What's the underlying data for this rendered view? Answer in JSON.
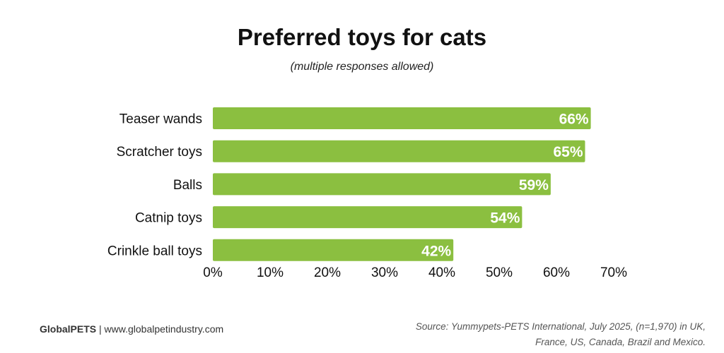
{
  "chart_data": {
    "type": "bar",
    "orientation": "horizontal",
    "title": "Preferred toys for cats",
    "subtitle": "(multiple responses allowed)",
    "categories": [
      "Teaser wands",
      "Scratcher toys",
      "Balls",
      "Catnip toys",
      "Crinkle ball toys"
    ],
    "values": [
      66,
      65,
      59,
      54,
      42
    ],
    "data_labels": [
      "66%",
      "65%",
      "59%",
      "54%",
      "42%"
    ],
    "xlim": [
      0,
      70
    ],
    "x_ticks": [
      "0%",
      "10%",
      "20%",
      "30%",
      "40%",
      "50%",
      "60%",
      "70%"
    ],
    "grid": false,
    "bar_color": "#8bbf40"
  },
  "footer": {
    "brand": "GlobalPETS",
    "separator": " | ",
    "website": "www.globalpetindustry.com",
    "source_line1": "Source: Yummypets-PETS International, July 2025, (n=1,970) in UK,",
    "source_line2": "France, US, Canada, Brazil and Mexico."
  }
}
